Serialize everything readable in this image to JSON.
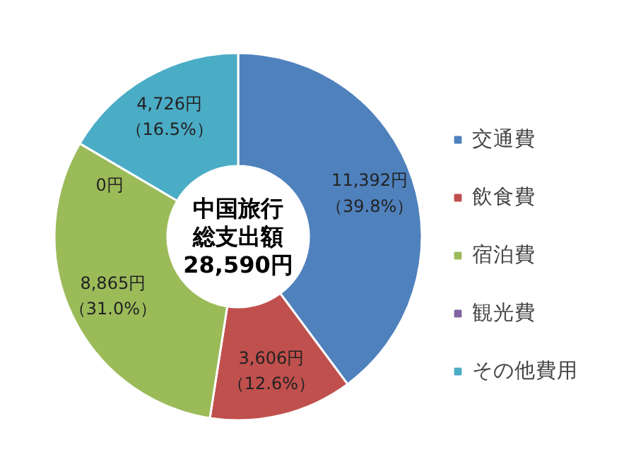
{
  "chart_data": {
    "type": "donut",
    "categories": [
      "交通費",
      "飲食費",
      "宿泊費",
      "観光費",
      "その他費用"
    ],
    "values": [
      11392,
      3606,
      8865,
      0,
      4726
    ],
    "colors": [
      "#4f81bd",
      "#c0504d",
      "#9bbb59",
      "#8064a2",
      "#4bacc6"
    ],
    "value_labels": [
      "11,392円（39.8%）",
      "3,606円（12.6%）",
      "8,865円（31.0%）",
      "0円",
      "4,726円（16.5%）"
    ],
    "annotations": [
      "中国旅行",
      "総支出額",
      "28,590円"
    ],
    "legend": "right"
  }
}
